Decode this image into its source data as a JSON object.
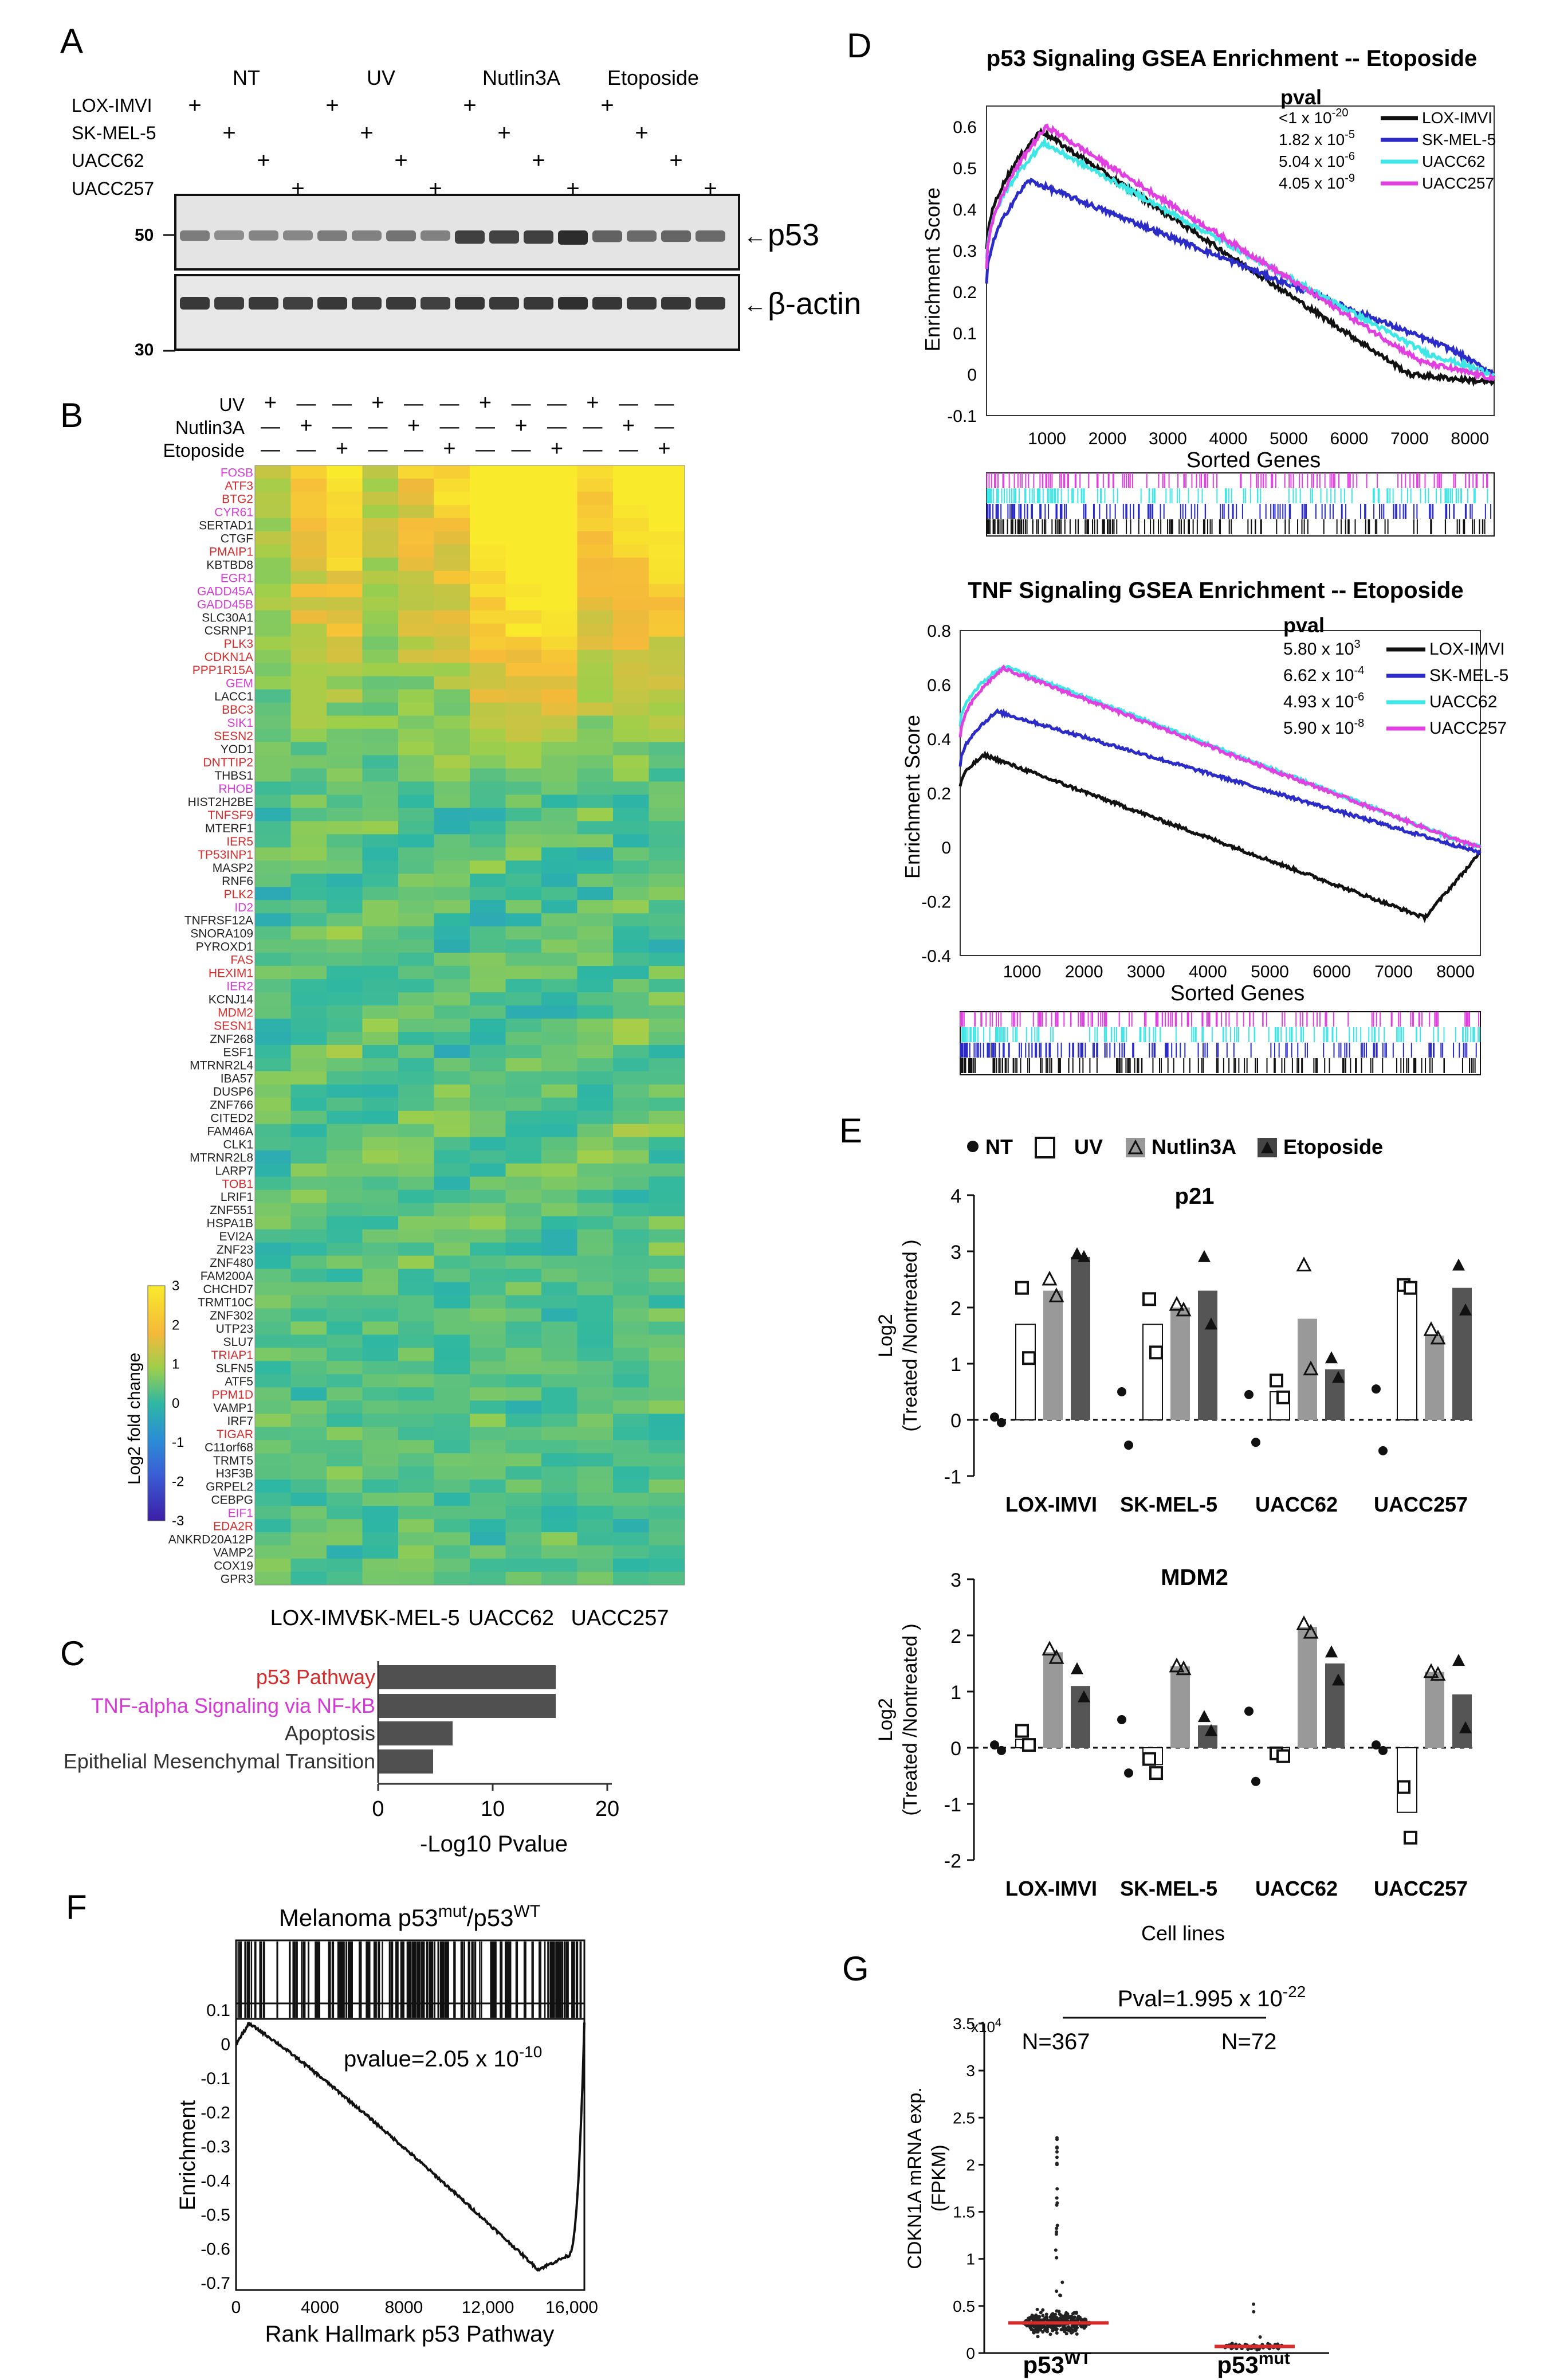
{
  "panels": {
    "A": "A",
    "B": "B",
    "C": "C",
    "D": "D",
    "E": "E",
    "F": "F",
    "G": "G"
  },
  "panelA": {
    "treatments": [
      "NT",
      "UV",
      "Nutlin3A",
      "Etoposide"
    ],
    "cell_lines": [
      "LOX-IMVI",
      "SK-MEL-5",
      "UACC62",
      "UACC257"
    ],
    "plus": "+",
    "mw_markers": [
      "50",
      "30"
    ],
    "proteins": [
      "p53",
      "β-actin"
    ],
    "arrow": "←",
    "p53_band_intensity": [
      0.45,
      0.35,
      0.4,
      0.38,
      0.45,
      0.42,
      0.5,
      0.42,
      0.8,
      0.78,
      0.8,
      0.92,
      0.6,
      0.55,
      0.58,
      0.55
    ],
    "actin_band_intensity": [
      0.85,
      0.82,
      0.84,
      0.8,
      0.85,
      0.82,
      0.84,
      0.8,
      0.86,
      0.84,
      0.85,
      0.9,
      0.86,
      0.84,
      0.86,
      0.84
    ]
  },
  "panelB": {
    "row_labels": [
      "UV",
      "Nutlin3A",
      "Etoposide"
    ],
    "plus": "+",
    "minus": "—",
    "genes": [
      {
        "name": "FOSB",
        "color": "#d63ad6"
      },
      {
        "name": "ATF3",
        "color": "#d62b2b"
      },
      {
        "name": "BTG2",
        "color": "#d62b2b"
      },
      {
        "name": "CYR61",
        "color": "#d63ad6"
      },
      {
        "name": "SERTAD1",
        "color": "#222222"
      },
      {
        "name": "CTGF",
        "color": "#222222"
      },
      {
        "name": "PMAIP1",
        "color": "#d62b2b"
      },
      {
        "name": "KBTBD8",
        "color": "#222222"
      },
      {
        "name": "EGR1",
        "color": "#d63ad6"
      },
      {
        "name": "GADD45A",
        "color": "#d63ad6"
      },
      {
        "name": "GADD45B",
        "color": "#d63ad6"
      },
      {
        "name": "SLC30A1",
        "color": "#222222"
      },
      {
        "name": "CSRNP1",
        "color": "#222222"
      },
      {
        "name": "PLK3",
        "color": "#d62b2b"
      },
      {
        "name": "CDKN1A",
        "color": "#d62b2b"
      },
      {
        "name": "PPP1R15A",
        "color": "#d62b2b"
      },
      {
        "name": "GEM",
        "color": "#d63ad6"
      },
      {
        "name": "LACC1",
        "color": "#222222"
      },
      {
        "name": "BBC3",
        "color": "#d62b2b"
      },
      {
        "name": "SIK1",
        "color": "#d63ad6"
      },
      {
        "name": "SESN2",
        "color": "#d62b2b"
      },
      {
        "name": "YOD1",
        "color": "#222222"
      },
      {
        "name": "DNTTIP2",
        "color": "#d62b2b"
      },
      {
        "name": "THBS1",
        "color": "#222222"
      },
      {
        "name": "RHOB",
        "color": "#d63ad6"
      },
      {
        "name": "HIST2H2BE",
        "color": "#222222"
      },
      {
        "name": "TNFSF9",
        "color": "#d62b2b"
      },
      {
        "name": "MTERF1",
        "color": "#222222"
      },
      {
        "name": "IER5",
        "color": "#d62b2b"
      },
      {
        "name": "TP53INP1",
        "color": "#d62b2b"
      },
      {
        "name": "MASP2",
        "color": "#222222"
      },
      {
        "name": "RNF6",
        "color": "#222222"
      },
      {
        "name": "PLK2",
        "color": "#d62b2b"
      },
      {
        "name": "ID2",
        "color": "#d63ad6"
      },
      {
        "name": "TNFRSF12A",
        "color": "#222222"
      },
      {
        "name": "SNORA109",
        "color": "#222222"
      },
      {
        "name": "PYROXD1",
        "color": "#222222"
      },
      {
        "name": "FAS",
        "color": "#d62b2b"
      },
      {
        "name": "HEXIM1",
        "color": "#d62b2b"
      },
      {
        "name": "IER2",
        "color": "#d63ad6"
      },
      {
        "name": "KCNJ14",
        "color": "#222222"
      },
      {
        "name": "MDM2",
        "color": "#d62b2b"
      },
      {
        "name": "SESN1",
        "color": "#d62b2b"
      },
      {
        "name": "ZNF268",
        "color": "#222222"
      },
      {
        "name": "ESF1",
        "color": "#222222"
      },
      {
        "name": "MTRNR2L4",
        "color": "#222222"
      },
      {
        "name": "IBA57",
        "color": "#222222"
      },
      {
        "name": "DUSP6",
        "color": "#222222"
      },
      {
        "name": "ZNF766",
        "color": "#222222"
      },
      {
        "name": "CITED2",
        "color": "#222222"
      },
      {
        "name": "FAM46A",
        "color": "#222222"
      },
      {
        "name": "CLK1",
        "color": "#222222"
      },
      {
        "name": "MTRNR2L8",
        "color": "#222222"
      },
      {
        "name": "LARP7",
        "color": "#222222"
      },
      {
        "name": "TOB1",
        "color": "#d62b2b"
      },
      {
        "name": "LRIF1",
        "color": "#222222"
      },
      {
        "name": "ZNF551",
        "color": "#222222"
      },
      {
        "name": "HSPA1B",
        "color": "#222222"
      },
      {
        "name": "EVI2A",
        "color": "#222222"
      },
      {
        "name": "ZNF23",
        "color": "#222222"
      },
      {
        "name": "ZNF480",
        "color": "#222222"
      },
      {
        "name": "FAM200A",
        "color": "#222222"
      },
      {
        "name": "CHCHD7",
        "color": "#222222"
      },
      {
        "name": "TRMT10C",
        "color": "#222222"
      },
      {
        "name": "ZNF302",
        "color": "#222222"
      },
      {
        "name": "UTP23",
        "color": "#222222"
      },
      {
        "name": "SLU7",
        "color": "#222222"
      },
      {
        "name": "TRIAP1",
        "color": "#d62b2b"
      },
      {
        "name": "SLFN5",
        "color": "#222222"
      },
      {
        "name": "ATF5",
        "color": "#222222"
      },
      {
        "name": "PPM1D",
        "color": "#d62b2b"
      },
      {
        "name": "VAMP1",
        "color": "#222222"
      },
      {
        "name": "IRF7",
        "color": "#222222"
      },
      {
        "name": "TIGAR",
        "color": "#d62b2b"
      },
      {
        "name": "C11orf68",
        "color": "#222222"
      },
      {
        "name": "TRMT5",
        "color": "#222222"
      },
      {
        "name": "H3F3B",
        "color": "#222222"
      },
      {
        "name": "GRPEL2",
        "color": "#222222"
      },
      {
        "name": "CEBPG",
        "color": "#222222"
      },
      {
        "name": "EIF1",
        "color": "#d63ad6"
      },
      {
        "name": "EDA2R",
        "color": "#d62b2b"
      },
      {
        "name": "ANKRD20A12P",
        "color": "#222222"
      },
      {
        "name": "VAMP2",
        "color": "#222222"
      },
      {
        "name": "COX19",
        "color": "#222222"
      },
      {
        "name": "GPR3",
        "color": "#222222"
      }
    ],
    "cell_lines": [
      "LOX-IMVI",
      "SK-MEL-5",
      "UACC62",
      "UACC257"
    ],
    "colorbar_label": "Log2 fold change",
    "colorbar_ticks": [
      "3",
      "2",
      "1",
      "0",
      "-1",
      "-2",
      "-3"
    ]
  },
  "panelC": {
    "title": "",
    "xlabel": "-Log10 Pvalue",
    "xticks": [
      "0",
      "10",
      "20"
    ],
    "bars": [
      {
        "label": "p53 Pathway",
        "value": 15.5,
        "color": "#d62b2b"
      },
      {
        "label": "TNF-alpha Signaling via NF-kB",
        "value": 15.5,
        "color": "#d63ad6"
      },
      {
        "label": "Apoptosis",
        "value": 6.5,
        "color": "#333333"
      },
      {
        "label": "Epithelial Mesenchymal Transition",
        "value": 4.8,
        "color": "#333333"
      }
    ]
  },
  "panelD": {
    "plot1": {
      "title": "p53 Signaling GSEA Enrichment -- Etoposide",
      "ylabel": "Enrichment Score",
      "xlabel": "Sorted Genes",
      "xticks": [
        "1000",
        "2000",
        "3000",
        "4000",
        "5000",
        "6000",
        "7000",
        "8000"
      ],
      "yticks": [
        "0.6",
        "0.5",
        "0.4",
        "0.3",
        "0.2",
        "0.1",
        "0",
        "-0.1"
      ],
      "legend_title": "pval",
      "legend": [
        {
          "pval": "<1 x 10",
          "exp": "-20",
          "name": "LOX-IMVI",
          "color": "#111111"
        },
        {
          "pval": "1.82 x 10",
          "exp": "-5",
          "name": "SK-MEL-5",
          "color": "#2b2bc8"
        },
        {
          "pval": "5.04 x 10",
          "exp": "-6",
          "name": "UACC62",
          "color": "#3ee6e6"
        },
        {
          "pval": "4.05 x 10",
          "exp": "-9",
          "name": "UACC257",
          "color": "#e040e0"
        }
      ],
      "curves": [
        {
          "peak": 0.59,
          "peak_x": 900,
          "start": 0.3,
          "color": "#111111",
          "end_min": -0.02
        },
        {
          "peak": 0.47,
          "peak_x": 700,
          "start": 0.22,
          "color": "#2b2bc8",
          "end_min": 0.0
        },
        {
          "peak": 0.56,
          "peak_x": 950,
          "start": 0.28,
          "color": "#3ee6e6",
          "end_min": 0.0
        },
        {
          "peak": 0.6,
          "peak_x": 1000,
          "start": 0.26,
          "color": "#e040e0",
          "end_min": -0.01
        }
      ]
    },
    "plot2": {
      "title": "TNF Signaling GSEA Enrichment -- Etoposide",
      "ylabel": "Enrichment Score",
      "xlabel": "Sorted Genes",
      "xticks": [
        "1000",
        "2000",
        "3000",
        "4000",
        "5000",
        "6000",
        "7000",
        "8000"
      ],
      "yticks": [
        "0.8",
        "0.6",
        "0.4",
        "0.2",
        "0",
        "-0.2",
        "-0.4"
      ],
      "legend_title": "pval",
      "legend": [
        {
          "pval": "5.80 x 10",
          "exp": "3",
          "name": "LOX-IMVI",
          "color": "#111111"
        },
        {
          "pval": "6.62 x 10",
          "exp": "-4",
          "name": "SK-MEL-5",
          "color": "#2b2bc8"
        },
        {
          "pval": "4.93 x 10",
          "exp": "-6",
          "name": "UACC62",
          "color": "#3ee6e6"
        },
        {
          "pval": "5.90 x 10",
          "exp": "-8",
          "name": "UACC257",
          "color": "#e040e0"
        }
      ]
    }
  },
  "panelE": {
    "legend": [
      "NT",
      "UV",
      "Nutlin3A",
      "Etoposide"
    ],
    "ylabel_top": "Log2",
    "ylabel_bottom": "(Treated /Nontreated )",
    "groups": [
      "LOX-IMVI",
      "SK-MEL-5",
      "UACC62",
      "UACC257"
    ],
    "xlabel": "Cell lines",
    "p21": {
      "title": "p21",
      "yticks": [
        "4",
        "3",
        "2",
        "1",
        "0",
        "-1"
      ],
      "ylim": [
        -1,
        4
      ],
      "bars": [
        [
          0,
          1.7,
          2.3,
          2.9
        ],
        [
          0,
          1.7,
          2.0,
          2.3
        ],
        [
          0,
          0.5,
          1.8,
          0.9
        ],
        [
          0,
          2.4,
          1.5,
          2.35
        ]
      ],
      "points": [
        [
          [
            0.05,
            -0.05
          ],
          [
            2.35,
            1.1
          ],
          [
            2.5,
            2.2
          ],
          [
            2.95,
            2.9
          ]
        ],
        [
          [
            0.5,
            -0.45
          ],
          [
            2.15,
            1.2
          ],
          [
            2.05,
            1.95
          ],
          [
            2.9,
            1.7
          ]
        ],
        [
          [
            0.45,
            -0.4
          ],
          [
            0.7,
            0.4
          ],
          [
            2.75,
            0.9
          ],
          [
            1.1,
            0.75
          ]
        ],
        [
          [
            0.55,
            -0.55
          ],
          [
            2.4,
            2.35
          ],
          [
            1.6,
            1.45
          ],
          [
            2.75,
            1.95
          ]
        ]
      ]
    },
    "mdm2": {
      "title": "MDM2",
      "yticks": [
        "3",
        "2",
        "1",
        "0",
        "-1",
        "-2"
      ],
      "ylim": [
        -2,
        3
      ],
      "bars": [
        [
          0,
          0.15,
          1.7,
          1.1
        ],
        [
          0,
          -0.3,
          1.45,
          0.4
        ],
        [
          0,
          -0.1,
          2.15,
          1.5
        ],
        [
          0,
          -1.15,
          1.35,
          0.95
        ]
      ],
      "points": [
        [
          [
            0.05,
            -0.05
          ],
          [
            0.3,
            0.05
          ],
          [
            1.75,
            1.6
          ],
          [
            1.4,
            0.9
          ]
        ],
        [
          [
            0.5,
            -0.45
          ],
          [
            -0.2,
            -0.45
          ],
          [
            1.45,
            1.4
          ],
          [
            0.55,
            0.3
          ]
        ],
        [
          [
            0.65,
            -0.6
          ],
          [
            -0.1,
            -0.15
          ],
          [
            2.2,
            2.05
          ],
          [
            1.7,
            1.2
          ]
        ],
        [
          [
            0.05,
            -0.05
          ],
          [
            -0.7,
            -1.6
          ],
          [
            1.35,
            1.3
          ],
          [
            1.55,
            0.35
          ]
        ]
      ]
    }
  },
  "panelF": {
    "title_base": "Melanoma p53",
    "title_sup1": "mut",
    "title_sep": "/p53",
    "title_sup2": "WT",
    "pvalue": "pvalue=2.05 x 10",
    "pvalue_exp": "-10",
    "ylabel": "Enrichment",
    "xlabel": "Rank Hallmark p53 Pathway",
    "xticks": [
      "0",
      "4000",
      "8000",
      "12,000",
      "16,000"
    ],
    "yticks": [
      "0.1",
      "0",
      "-0.1",
      "-0.2",
      "-0.3",
      "-0.4",
      "-0.5",
      "-0.6",
      "-0.7"
    ]
  },
  "panelG": {
    "pval": "Pval=1.995 x 10",
    "pval_exp": "-22",
    "n_wt": "N=367",
    "n_mut": "N=72",
    "ylabel1": "CDKN1A mRNA exp.",
    "ylabel2": "(FPKM)",
    "ymult": "x10",
    "ymult_exp": "4",
    "yticks": [
      "3.5",
      "3",
      "2.5",
      "2",
      "1.5",
      "1",
      "0.5",
      "0"
    ],
    "groups": [
      {
        "base": "p53",
        "sup": "WT"
      },
      {
        "base": "p53",
        "sup": "mut"
      }
    ],
    "median_wt": 0.32,
    "median_mut": 0.07
  }
}
